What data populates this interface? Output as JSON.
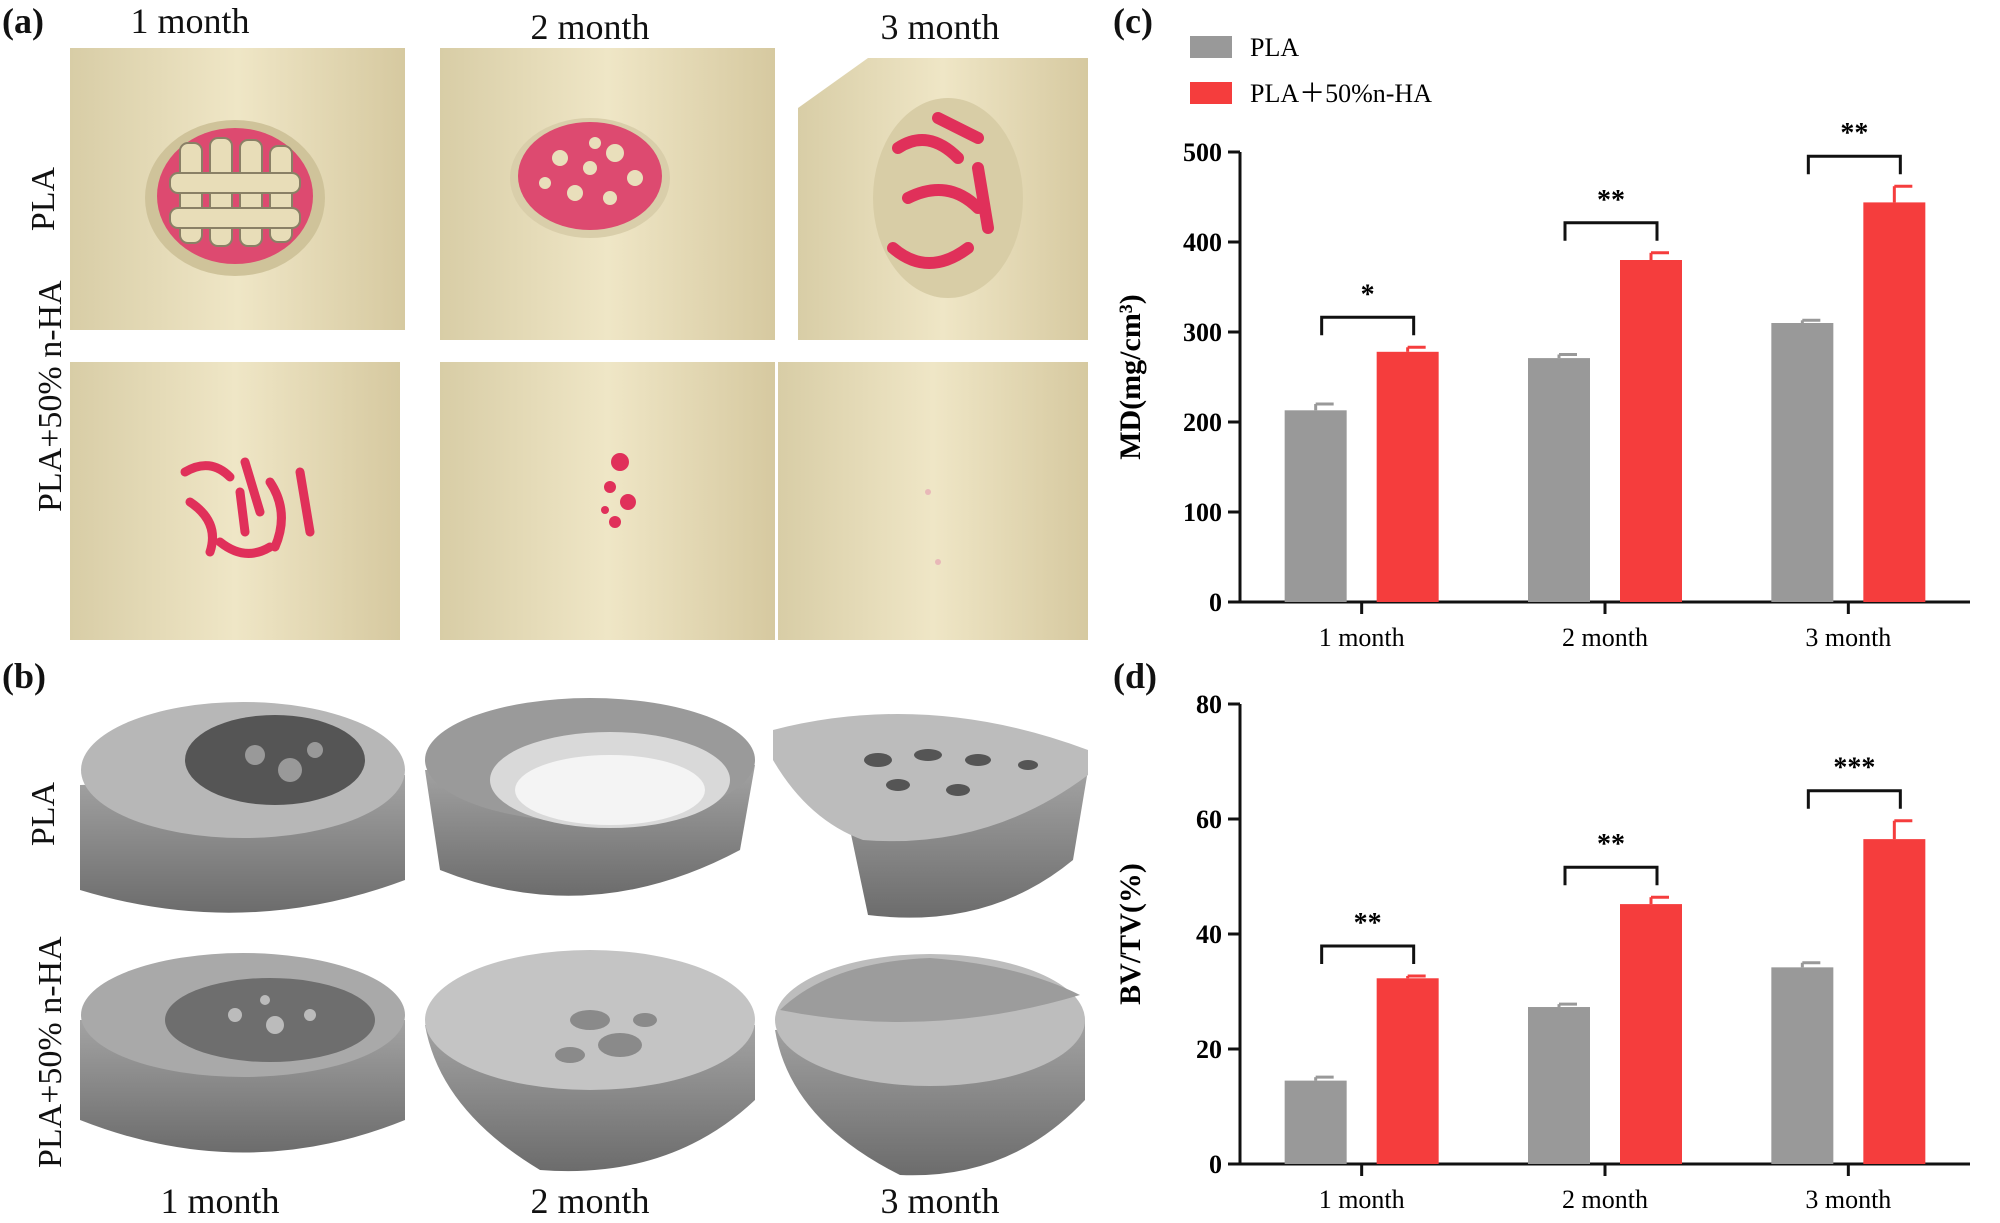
{
  "panels": {
    "a": "(a)",
    "b": "(b)",
    "c": "(c)",
    "d": "(d)"
  },
  "image_grid": {
    "columns": [
      "1 month",
      "2 month",
      "3 month"
    ],
    "rows": [
      "PLA",
      "PLA+50% n-HA"
    ]
  },
  "colors": {
    "pla": "#999999",
    "pla_nha": "#f53d3d",
    "bone": "#ece2c0",
    "defect": "#e0305a",
    "scaffold": "#9a9a9a"
  },
  "chart_data": [
    {
      "type": "bar",
      "panel": "(c)",
      "categories": [
        "1 month",
        "2 month",
        "3 month"
      ],
      "ylabel": "MD(mg/cm³)",
      "ylim": [
        0,
        500
      ],
      "yticks": [
        "0",
        "100",
        "200",
        "300",
        "400",
        "500"
      ],
      "series": [
        {
          "name": "PLA",
          "values": [
            213,
            271,
            310
          ],
          "errors": [
            7,
            4,
            3
          ]
        },
        {
          "name": "PLA＋50%n-HA",
          "values": [
            278,
            380,
            444
          ],
          "errors": [
            5,
            8,
            18
          ]
        }
      ],
      "significance": [
        "*",
        "**",
        "**"
      ],
      "legend": "top-left"
    },
    {
      "type": "bar",
      "panel": "(d)",
      "categories": [
        "1 month",
        "2 month",
        "3 month"
      ],
      "ylabel": "BV/TV(%)",
      "ylim": [
        0,
        80
      ],
      "yticks": [
        "0",
        "20",
        "40",
        "60",
        "80"
      ],
      "series": [
        {
          "name": "PLA",
          "values": [
            14.5,
            27.3,
            34.2
          ],
          "errors": [
            0.6,
            0.5,
            0.8
          ]
        },
        {
          "name": "PLA＋50%n-HA",
          "values": [
            32.3,
            45.2,
            56.5
          ],
          "errors": [
            0.4,
            1.2,
            3.2
          ]
        }
      ],
      "significance": [
        "**",
        "**",
        "***"
      ]
    }
  ]
}
